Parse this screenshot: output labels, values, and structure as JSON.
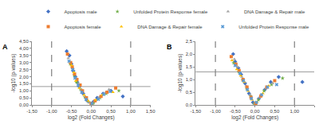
{
  "chart_data": [
    {
      "type": "scatter",
      "title": "A",
      "x_label": "log2 (Fold Changes)",
      "y_label": "-log10 (p-values)",
      "xlim": [
        -1.5,
        1.5
      ],
      "xticks": [
        {
          "value": -1.5,
          "label": "-1,50"
        },
        {
          "value": -1,
          "label": "-1,00"
        },
        {
          "value": -0.5,
          "label": "-0,50"
        },
        {
          "value": 0,
          "label": "0,00"
        },
        {
          "value": 0.5,
          "label": "0,50"
        },
        {
          "value": 1,
          "label": "1,00"
        },
        {
          "value": 1.5,
          "label": "1,50"
        }
      ],
      "ylim": [
        0,
        4.5
      ],
      "yticks": [
        {
          "value": 0,
          "label": "0,00"
        },
        {
          "value": 0.5,
          "label": "0,50"
        },
        {
          "value": 1,
          "label": "1,00"
        },
        {
          "value": 1.5,
          "label": "1,50"
        },
        {
          "value": 2,
          "label": "2,00"
        },
        {
          "value": 2.5,
          "label": "2,50"
        },
        {
          "value": 3,
          "label": "3,00"
        },
        {
          "value": 3.5,
          "label": "3,50"
        },
        {
          "value": 4,
          "label": "4,00"
        },
        {
          "value": 4.5,
          "label": "4,50"
        }
      ],
      "grid": false,
      "legend": "top",
      "reference_lines": {
        "x": [
          -1,
          1
        ],
        "y": [
          1.3
        ]
      },
      "series": [
        {
          "name": "Apoptosis male",
          "color": "#4472c4",
          "marker": "diamond",
          "x": [
            -0.62,
            -0.55,
            -0.5,
            -0.45,
            -0.4,
            -0.35,
            -0.3,
            -0.2,
            -0.1,
            0.05,
            0.15,
            0.3,
            0.5,
            0.8
          ],
          "values": [
            3.8,
            3.5,
            2.9,
            2.4,
            2.0,
            1.6,
            1.3,
            0.8,
            0.3,
            0.2,
            0.5,
            0.8,
            1.0,
            0.6
          ]
        },
        {
          "name": "Unfolded Protein Response female",
          "color": "#70ad47",
          "marker": "star",
          "x": [
            -0.53,
            -0.43,
            -0.37,
            -0.27,
            -0.16,
            -0.06,
            0.06,
            0.22,
            0.38,
            0.7
          ],
          "values": [
            2.9,
            2.1,
            1.6,
            1.1,
            0.55,
            0.2,
            0.15,
            0.5,
            0.8,
            1.0
          ]
        },
        {
          "name": "DNA Damage & Repair male",
          "color": "#a5a5a5",
          "marker": "triangle-up",
          "x": [
            -0.58,
            -0.46,
            -0.38,
            -0.32,
            -0.25,
            -0.15,
            -0.05,
            0.08,
            0.2,
            0.35,
            0.45
          ],
          "values": [
            3.3,
            2.6,
            1.9,
            1.5,
            1.1,
            0.6,
            0.15,
            0.25,
            0.55,
            0.85,
            1.1
          ]
        },
        {
          "name": "Apoptosis female",
          "color": "#ed7d31",
          "marker": "square",
          "x": [
            -0.6,
            -0.52,
            -0.48,
            -0.42,
            -0.36,
            -0.28,
            -0.22,
            -0.12,
            0.0,
            0.1,
            0.25,
            0.4,
            0.62
          ],
          "values": [
            3.6,
            3.0,
            2.7,
            2.2,
            1.8,
            1.4,
            1.0,
            0.5,
            0.1,
            0.3,
            0.6,
            0.9,
            1.2
          ]
        },
        {
          "name": "DNA Damage & Repair female",
          "color": "#ffc000",
          "marker": "triangle-up",
          "x": [
            -0.5,
            -0.44,
            -0.39,
            -0.3,
            -0.18,
            -0.08,
            0.03,
            0.12,
            0.28,
            0.55
          ],
          "values": [
            2.8,
            2.3,
            1.7,
            1.2,
            0.7,
            0.3,
            0.05,
            0.35,
            0.7,
            0.9
          ]
        },
        {
          "name": "Unfolded Protein Response male",
          "color": "#5b9bd5",
          "marker": "x",
          "x": [
            -0.56,
            -0.47,
            -0.41,
            -0.33,
            -0.24,
            -0.13,
            0.02,
            0.18,
            0.32,
            0.48
          ],
          "values": [
            3.1,
            2.5,
            1.9,
            1.4,
            0.9,
            0.4,
            0.1,
            0.4,
            0.75,
            0.95
          ]
        }
      ]
    },
    {
      "type": "scatter",
      "title": "B",
      "x_label": "log2 (Fold Changes)",
      "y_label": "-log10 (p-values)",
      "xlim": [
        -1.5,
        1.5
      ],
      "xticks": [
        {
          "value": -1.5,
          "label": "-1,50"
        },
        {
          "value": -1,
          "label": "-1,00"
        },
        {
          "value": -0.5,
          "label": "-0,50"
        },
        {
          "value": 0,
          "label": "0,00"
        },
        {
          "value": 0.5,
          "label": "0,50"
        },
        {
          "value": 1,
          "label": "1,00"
        },
        {
          "value": 1.5,
          "label": "1,50"
        }
      ],
      "ylim": [
        0,
        2.5
      ],
      "yticks": [
        {
          "value": 0,
          "label": "0,0"
        },
        {
          "value": 0.5,
          "label": "0,5"
        },
        {
          "value": 1,
          "label": "1,0"
        },
        {
          "value": 1.5,
          "label": "1,5"
        },
        {
          "value": 2,
          "label": "2,0"
        },
        {
          "value": 2.5,
          "label": "2,5"
        }
      ],
      "grid": false,
      "legend": "top",
      "reference_lines": {
        "x": [
          -1,
          1
        ],
        "y": [
          1.3
        ]
      },
      "series": [
        {
          "name": "Apoptosis male",
          "color": "#4472c4",
          "marker": "diamond",
          "x": [
            -0.55,
            -0.5,
            -0.42,
            -0.35,
            -0.25,
            -0.15,
            -0.05,
            0.1,
            0.25,
            0.4,
            0.6,
            1.2
          ],
          "values": [
            2.0,
            1.7,
            1.45,
            1.2,
            0.85,
            0.45,
            0.1,
            0.25,
            0.6,
            0.9,
            1.1,
            0.9
          ]
        },
        {
          "name": "Unfolded Protein Response female",
          "color": "#70ad47",
          "marker": "star",
          "x": [
            -0.54,
            -0.41,
            -0.31,
            -0.21,
            -0.11,
            -0.02,
            0.09,
            0.23,
            0.42,
            0.7
          ],
          "values": [
            1.65,
            1.3,
            0.98,
            0.65,
            0.35,
            0.05,
            0.2,
            0.55,
            0.8,
            1.05
          ]
        },
        {
          "name": "DNA Damage & Repair male",
          "color": "#a5a5a5",
          "marker": "triangle-up",
          "x": [
            -0.52,
            -0.44,
            -0.33,
            -0.22,
            -0.12,
            0.0,
            0.12,
            0.28,
            0.45
          ],
          "values": [
            1.8,
            1.5,
            1.1,
            0.75,
            0.4,
            0.08,
            0.3,
            0.65,
            0.85
          ]
        },
        {
          "name": "Apoptosis female",
          "color": "#ed7d31",
          "marker": "square",
          "x": [
            -0.6,
            -0.48,
            -0.4,
            -0.3,
            -0.2,
            -0.1,
            0.02,
            0.15,
            0.3,
            0.5
          ],
          "values": [
            1.9,
            1.6,
            1.35,
            1.0,
            0.7,
            0.3,
            0.05,
            0.35,
            0.7,
            0.95
          ]
        },
        {
          "name": "DNA Damage & Repair female",
          "color": "#ffc000",
          "marker": "triangle-up",
          "x": [
            -0.58,
            -0.46,
            -0.36,
            -0.27,
            -0.17,
            -0.07,
            0.05,
            0.2,
            0.35
          ],
          "values": [
            1.75,
            1.4,
            1.15,
            0.9,
            0.55,
            0.2,
            0.12,
            0.45,
            0.75
          ]
        },
        {
          "name": "Unfolded Protein Response male",
          "color": "#5b9bd5",
          "marker": "x",
          "x": [
            -0.5,
            -0.38,
            -0.29,
            -0.19,
            -0.09,
            0.04,
            0.17,
            0.32,
            0.55
          ],
          "values": [
            1.55,
            1.25,
            0.95,
            0.6,
            0.25,
            0.1,
            0.4,
            0.7,
            0.8
          ]
        }
      ]
    }
  ]
}
